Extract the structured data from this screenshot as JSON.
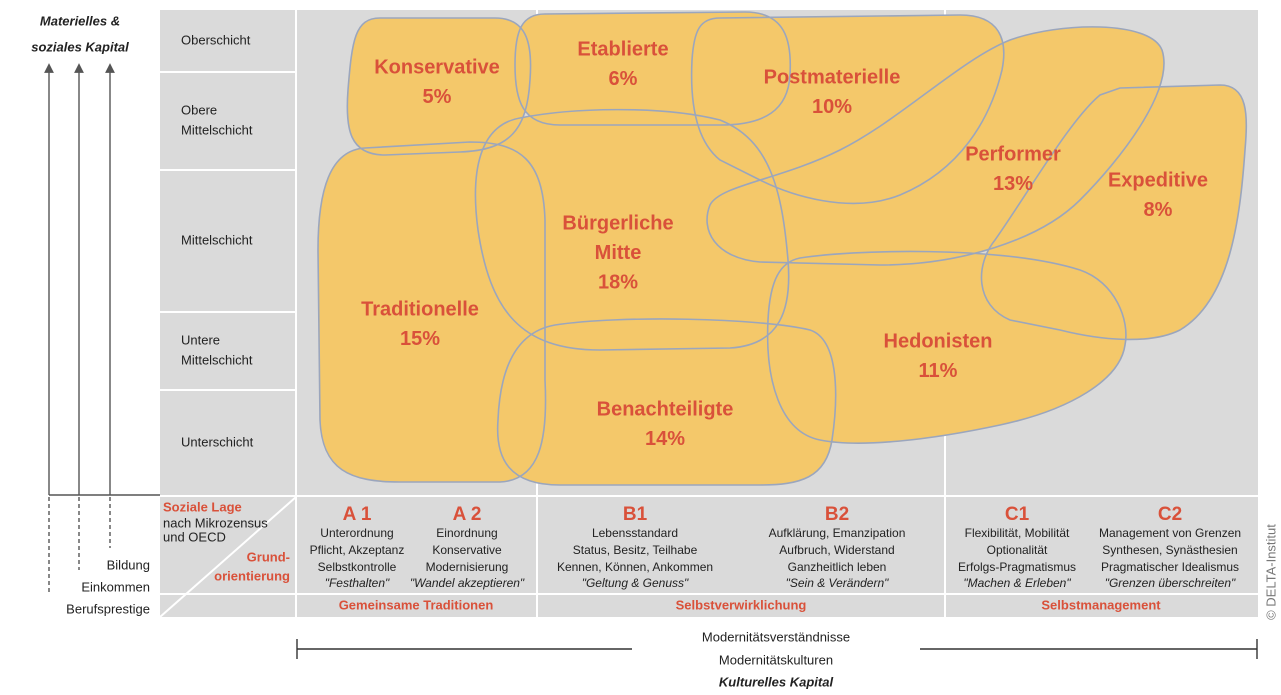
{
  "left_axis": {
    "title_lines": [
      "Materielles &",
      "soziales Kapital"
    ],
    "labels": [
      "Bildung",
      "Einkommen",
      "Berufsprestige"
    ]
  },
  "grid": {
    "rows": [
      "Oberschicht",
      [
        "Obere",
        "Mittelschicht"
      ],
      "Mittelschicht",
      [
        "Untere",
        "Mittelschicht"
      ],
      "Unterschicht"
    ],
    "social_status": {
      "title": "Soziale Lage",
      "note_lines": [
        "nach Mikrozensus",
        "und OECD"
      ]
    },
    "orientation_header_lines": [
      "Grund-",
      "orientierung"
    ],
    "orientations": [
      {
        "code": "A 1",
        "lines": [
          "Unterordnung",
          "Pflicht, Akzeptanz",
          "Selbstkontrolle"
        ],
        "motto": "\"Festhalten\""
      },
      {
        "code": "A 2",
        "lines": [
          "Einordnung",
          "Konservative",
          "Modernisierung"
        ],
        "motto": "\"Wandel akzeptieren\""
      },
      {
        "code": "B1",
        "lines": [
          "Lebensstandard",
          "Status, Besitz, Teilhabe",
          "Kennen, Können, Ankommen"
        ],
        "motto": "\"Geltung & Genuss\""
      },
      {
        "code": "B2",
        "lines": [
          "Aufklärung, Emanzipation",
          "Aufbruch, Widerstand",
          "Ganzheitlich leben"
        ],
        "motto": "\"Sein & Verändern\""
      },
      {
        "code": "C1",
        "lines": [
          "Flexibilität, Mobilität",
          "Optionalität",
          "Erfolgs-Pragmatismus"
        ],
        "motto": "\"Machen & Erleben\""
      },
      {
        "code": "C2",
        "lines": [
          "Management von Grenzen",
          "Synthesen, Synästhesien",
          "Pragmatischer Idealismus"
        ],
        "motto": "\"Grenzen überschreiten\""
      }
    ],
    "groups": [
      "Gemeinsame Traditionen",
      "Selbstverwirklichung",
      "Selbstmanagement"
    ]
  },
  "milieus": [
    {
      "name_lines": [
        "Konservative"
      ],
      "share": "5%"
    },
    {
      "name_lines": [
        "Etablierte"
      ],
      "share": "6%"
    },
    {
      "name_lines": [
        "Postmaterielle"
      ],
      "share": "10%"
    },
    {
      "name_lines": [
        "Performer"
      ],
      "share": "13%"
    },
    {
      "name_lines": [
        "Expeditive"
      ],
      "share": "8%"
    },
    {
      "name_lines": [
        "Bürgerliche",
        "Mitte"
      ],
      "share": "18%"
    },
    {
      "name_lines": [
        "Traditionelle"
      ],
      "share": "15%"
    },
    {
      "name_lines": [
        "Hedonisten"
      ],
      "share": "11%"
    },
    {
      "name_lines": [
        "Benachteiligte"
      ],
      "share": "14%"
    }
  ],
  "bottom_axis": {
    "lines": [
      "Modernitätsverständnisse",
      "Modernitätskulturen"
    ],
    "title": "Kulturelles Kapital"
  },
  "copyright": "© DELTA-Institut"
}
